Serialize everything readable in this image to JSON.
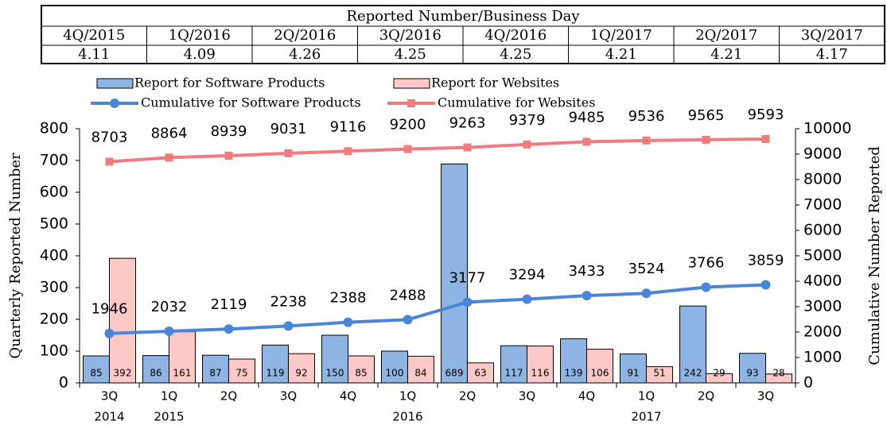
{
  "table": {
    "title": "Reported Number/Business Day",
    "header": [
      "4Q/2015",
      "1Q/2016",
      "2Q/2016",
      "3Q/2016",
      "4Q/2016",
      "1Q/2017",
      "2Q/2017",
      "3Q/2017"
    ],
    "row": [
      4.11,
      4.09,
      4.26,
      4.25,
      4.25,
      4.21,
      4.21,
      4.17
    ]
  },
  "chart_data": {
    "type": "bar_line",
    "categories": [
      "3Q",
      "1Q",
      "2Q",
      "3Q",
      "4Q",
      "1Q",
      "2Q",
      "3Q",
      "4Q",
      "1Q",
      "2Q",
      "3Q"
    ],
    "year_labels": [
      "2014",
      "2015",
      null,
      null,
      null,
      "2016",
      null,
      null,
      null,
      "2017",
      null,
      null
    ],
    "y_label": "Quarterly Reported Number",
    "y2_label": "Cumulative Number Reported",
    "ylim": [
      0,
      800
    ],
    "yticks": [
      0,
      100,
      200,
      300,
      400,
      500,
      600,
      700,
      800
    ],
    "y2lim": [
      0,
      10000
    ],
    "y2ticks": [
      0,
      1000,
      2000,
      3000,
      4000,
      5000,
      6000,
      7000,
      8000,
      9000,
      10000
    ],
    "series": [
      {
        "name": "Report for Software Products",
        "kind": "bar",
        "color": "#8db4e2",
        "values": [
          85,
          86,
          87,
          119,
          150,
          100,
          689,
          117,
          139,
          91,
          242,
          93
        ]
      },
      {
        "name": "Report for Websites",
        "kind": "bar",
        "color": "#fcc8c8",
        "values": [
          392,
          161,
          75,
          92,
          85,
          84,
          63,
          116,
          106,
          51,
          29,
          28
        ]
      },
      {
        "name": "Cumulative for Software Products",
        "kind": "line",
        "axis": "y2",
        "color": "#4a86d8",
        "marker": "circle",
        "values": [
          1946,
          2032,
          2119,
          2238,
          2388,
          2488,
          3177,
          3294,
          3433,
          3524,
          3766,
          3859
        ]
      },
      {
        "name": "Cumulative for Websites",
        "kind": "line",
        "axis": "y2",
        "color": "#f07b80",
        "marker": "square",
        "values": [
          8703,
          8864,
          8939,
          9031,
          9116,
          9200,
          9263,
          9379,
          9485,
          9536,
          9565,
          9593
        ]
      }
    ]
  }
}
